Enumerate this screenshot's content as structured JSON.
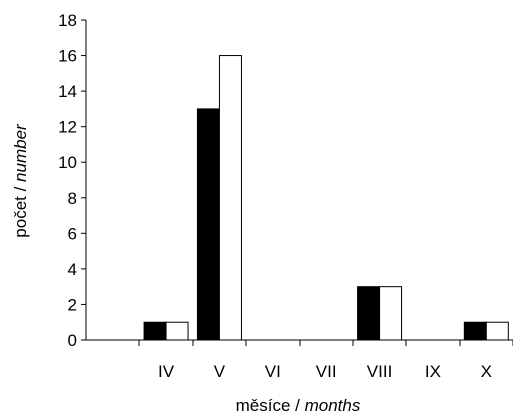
{
  "chart_data": {
    "type": "bar",
    "categories": [
      "",
      "IV",
      "V",
      "VI",
      "VII",
      "VIII",
      "IX",
      "X"
    ],
    "series": [
      {
        "values": [
          0,
          1,
          13,
          0,
          0,
          3,
          0,
          1
        ],
        "color": "#000000"
      },
      {
        "values": [
          0,
          1,
          16,
          0,
          0,
          3,
          0,
          1
        ],
        "color": "#ffffff"
      }
    ],
    "xlabel": {
      "plain": "měsíce / ",
      "italic": "months"
    },
    "ylabel": {
      "plain": "počet / ",
      "italic": "number"
    },
    "ylim": [
      0,
      18
    ],
    "yticks": [
      0,
      2,
      4,
      6,
      8,
      10,
      12,
      14,
      16,
      18
    ],
    "grid": false
  }
}
